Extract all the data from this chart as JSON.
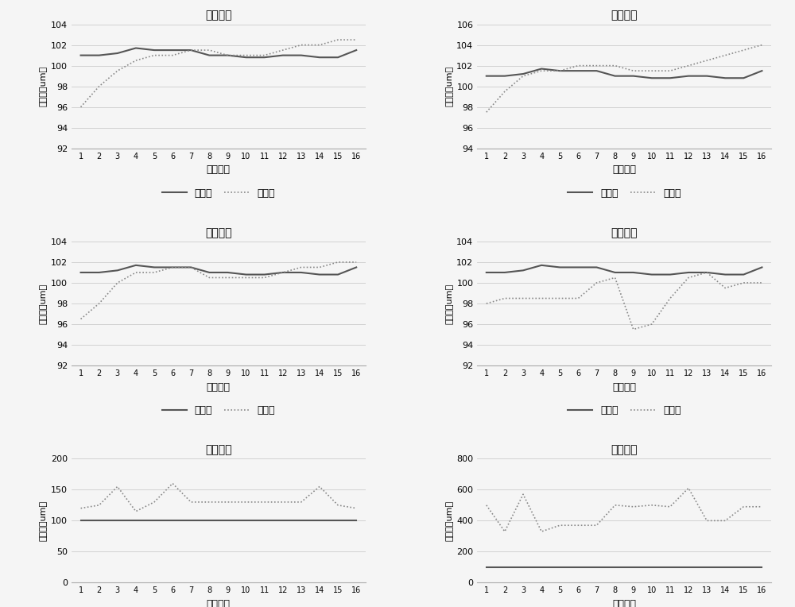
{
  "titles": [
    "一阶拟合",
    "二阶拟合",
    "三阶拟合",
    "四阶拟合",
    "五阶拟合",
    "六阶拟合"
  ],
  "xlabel": "元件编号",
  "ylabel": "高度値（um）",
  "legend_standard": "标准値",
  "legend_measured": "测量値",
  "x": [
    1,
    2,
    3,
    4,
    5,
    6,
    7,
    8,
    9,
    10,
    11,
    12,
    13,
    14,
    15,
    16
  ],
  "standard_values": {
    "plot1": [
      101.0,
      101.0,
      101.2,
      101.7,
      101.5,
      101.5,
      101.5,
      101.0,
      101.0,
      100.8,
      100.8,
      101.0,
      101.0,
      100.8,
      100.8,
      101.5
    ],
    "plot2": [
      101.0,
      101.0,
      101.2,
      101.7,
      101.5,
      101.5,
      101.5,
      101.0,
      101.0,
      100.8,
      100.8,
      101.0,
      101.0,
      100.8,
      100.8,
      101.5
    ],
    "plot3": [
      101.0,
      101.0,
      101.2,
      101.7,
      101.5,
      101.5,
      101.5,
      101.0,
      101.0,
      100.8,
      100.8,
      101.0,
      101.0,
      100.8,
      100.8,
      101.5
    ],
    "plot4": [
      101.0,
      101.0,
      101.2,
      101.7,
      101.5,
      101.5,
      101.5,
      101.0,
      101.0,
      100.8,
      100.8,
      101.0,
      101.0,
      100.8,
      100.8,
      101.5
    ],
    "plot5": [
      100.0,
      100.0,
      100.0,
      100.0,
      100.0,
      100.0,
      100.0,
      100.0,
      100.0,
      100.0,
      100.0,
      100.0,
      100.0,
      100.0,
      100.0,
      100.0
    ],
    "plot6": [
      100.0,
      100.0,
      100.0,
      100.0,
      100.0,
      100.0,
      100.0,
      100.0,
      100.0,
      100.0,
      100.0,
      100.0,
      100.0,
      100.0,
      100.0,
      100.0
    ]
  },
  "measured_values": {
    "plot1": [
      96.0,
      98.0,
      99.5,
      100.5,
      101.0,
      101.0,
      101.5,
      101.5,
      101.0,
      101.0,
      101.0,
      101.5,
      102.0,
      102.0,
      102.5,
      102.5
    ],
    "plot2": [
      97.5,
      99.5,
      101.0,
      101.5,
      101.5,
      102.0,
      102.0,
      102.0,
      101.5,
      101.5,
      101.5,
      102.0,
      102.5,
      103.0,
      103.5,
      104.0
    ],
    "plot3": [
      96.5,
      98.0,
      100.0,
      101.0,
      101.0,
      101.5,
      101.5,
      100.5,
      100.5,
      100.5,
      100.5,
      101.0,
      101.5,
      101.5,
      102.0,
      102.0
    ],
    "plot4": [
      98.0,
      98.5,
      98.5,
      98.5,
      98.5,
      98.5,
      100.0,
      100.5,
      95.5,
      96.0,
      98.5,
      100.5,
      101.0,
      99.5,
      100.0,
      100.0
    ],
    "plot5": [
      120,
      125,
      155,
      115,
      130,
      160,
      130,
      130,
      130,
      130,
      130,
      130,
      130,
      155,
      125,
      120
    ],
    "plot6": [
      500,
      330,
      570,
      330,
      370,
      370,
      370,
      500,
      490,
      500,
      490,
      610,
      400,
      400,
      490,
      490
    ]
  },
  "ylims": {
    "plot1": [
      92,
      104
    ],
    "plot2": [
      94,
      106
    ],
    "plot3": [
      92,
      104
    ],
    "plot4": [
      92,
      104
    ],
    "plot5": [
      0,
      200
    ],
    "plot6": [
      0,
      800
    ]
  },
  "yticks": {
    "plot1": [
      92,
      94,
      96,
      98,
      100,
      102,
      104
    ],
    "plot2": [
      94,
      96,
      98,
      100,
      102,
      104,
      106
    ],
    "plot3": [
      92,
      94,
      96,
      98,
      100,
      102,
      104
    ],
    "plot4": [
      92,
      94,
      96,
      98,
      100,
      102,
      104
    ],
    "plot5": [
      0,
      50,
      100,
      150,
      200
    ],
    "plot6": [
      0,
      200,
      400,
      600,
      800
    ]
  },
  "line_color_standard": "#555555",
  "line_color_measured": "#888888",
  "background_color": "#f5f5f5",
  "grid_color": "#cccccc"
}
